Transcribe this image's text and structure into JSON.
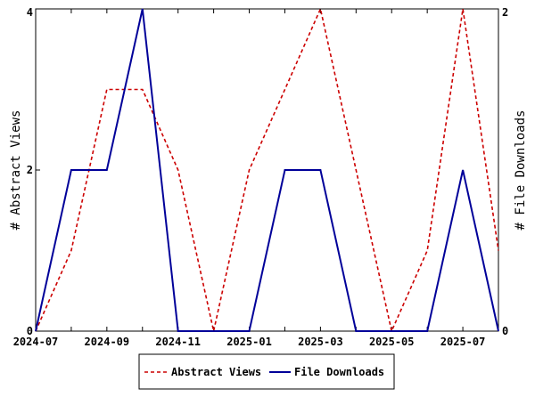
{
  "chart_data": {
    "type": "line",
    "x": [
      "2024-07",
      "2024-08",
      "2024-09",
      "2024-10",
      "2024-11",
      "2024-12",
      "2025-01",
      "2025-02",
      "2025-03",
      "2025-04",
      "2025-05",
      "2025-06",
      "2025-07",
      "2025-08"
    ],
    "x_tick_labels": [
      "2024-07",
      "2024-09",
      "2024-11",
      "2025-01",
      "2025-03",
      "2025-05",
      "2025-07"
    ],
    "series": [
      {
        "name": "Abstract Views",
        "axis": "left",
        "color": "#cc0000",
        "style": "dashed",
        "values": [
          0,
          1,
          3,
          3,
          2,
          0,
          2,
          3,
          4,
          2,
          0,
          1,
          4,
          1
        ]
      },
      {
        "name": "File Downloads",
        "axis": "right",
        "color": "#000099",
        "style": "solid",
        "values": [
          0,
          1,
          1,
          2,
          0,
          0,
          0,
          1,
          1,
          0,
          0,
          0,
          1,
          0
        ]
      }
    ],
    "ylabel_left": "# Abstract Views",
    "ylabel_right": "# File Downloads",
    "ylim_left": [
      0,
      4
    ],
    "ylim_right": [
      0,
      2
    ],
    "yticks_left": [
      "0",
      "2",
      "4"
    ],
    "yticks_right": [
      "0",
      "2"
    ],
    "legend_position": "bottom-center",
    "grid": false
  }
}
